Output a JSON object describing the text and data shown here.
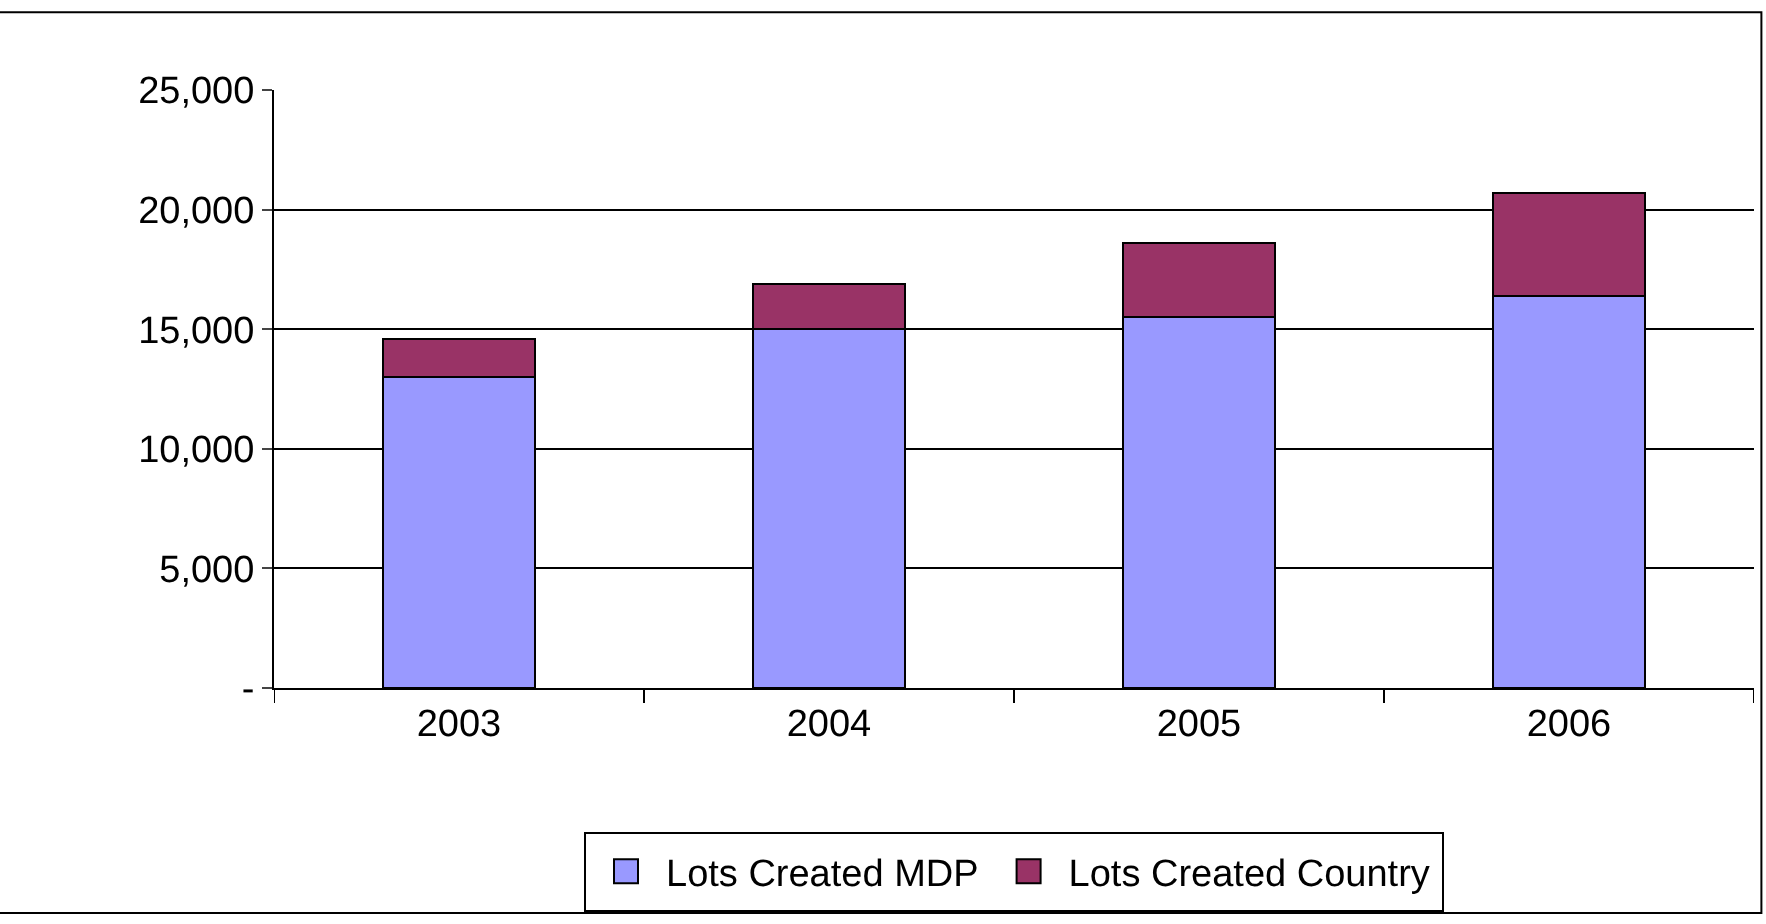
{
  "chart_data": {
    "type": "bar",
    "stacked": true,
    "categories": [
      "2003",
      "2004",
      "2005",
      "2006"
    ],
    "series": [
      {
        "name": "Lots Created MDP",
        "color": "#9999ff",
        "values": [
          13000,
          15000,
          15500,
          16400
        ]
      },
      {
        "name": "Lots Created Country",
        "color": "#993366",
        "values": [
          1600,
          1900,
          3100,
          4300
        ]
      }
    ],
    "ylim": [
      0,
      25000
    ],
    "yticks": [
      {
        "value": 0,
        "label": "-"
      },
      {
        "value": 5000,
        "label": "5,000"
      },
      {
        "value": 10000,
        "label": "10,000"
      },
      {
        "value": 15000,
        "label": "15,000"
      },
      {
        "value": 20000,
        "label": "20,000"
      },
      {
        "value": 25000,
        "label": "25,000"
      }
    ],
    "grid": "y",
    "legend": "bottom"
  }
}
